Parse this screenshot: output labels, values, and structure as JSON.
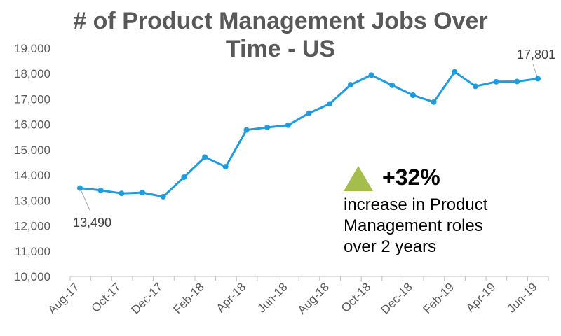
{
  "chart_data": {
    "type": "line",
    "title_line1": "# of Product Management Jobs Over",
    "title_line2": "Time - US",
    "xlabel": "",
    "ylabel": "",
    "ylim": [
      10000,
      19000
    ],
    "y_ticks": [
      "10,000",
      "11,000",
      "12,000",
      "13,000",
      "14,000",
      "15,000",
      "16,000",
      "17,000",
      "18,000",
      "19,000"
    ],
    "x_tick_labels": [
      "Aug-17",
      "Oct-17",
      "Dec-17",
      "Feb-18",
      "Apr-18",
      "Jun-18",
      "Aug-18",
      "Oct-18",
      "Dec-18",
      "Feb-19",
      "Apr-19",
      "Jun-19"
    ],
    "x": [
      "Aug-17",
      "Sep-17",
      "Oct-17",
      "Nov-17",
      "Dec-17",
      "Jan-18",
      "Feb-18",
      "Mar-18",
      "Apr-18",
      "May-18",
      "Jun-18",
      "Jul-18",
      "Aug-18",
      "Sep-18",
      "Oct-18",
      "Nov-18",
      "Dec-18",
      "Jan-19",
      "Feb-19",
      "Mar-19",
      "Apr-19",
      "May-19",
      "Jun-19"
    ],
    "series": [
      {
        "values": [
          13490,
          13400,
          13280,
          13310,
          13150,
          13920,
          14710,
          14330,
          15780,
          15880,
          15970,
          16440,
          16810,
          17560,
          17940,
          17540,
          17150,
          16880,
          18070,
          17500,
          17680,
          17690,
          17801
        ],
        "color": "#1f9bde"
      }
    ],
    "data_labels": [
      {
        "point_index": 0,
        "text": "13,490",
        "position": "below"
      },
      {
        "point_index": 22,
        "text": "17,801",
        "position": "above"
      }
    ],
    "grid": false,
    "legend": "none"
  },
  "callout": {
    "percent": "+32%",
    "line1": "increase in Product",
    "line2": "Management roles",
    "line3": "over 2 years",
    "icon": "up-triangle-icon",
    "icon_color": "#a5bd4a"
  }
}
